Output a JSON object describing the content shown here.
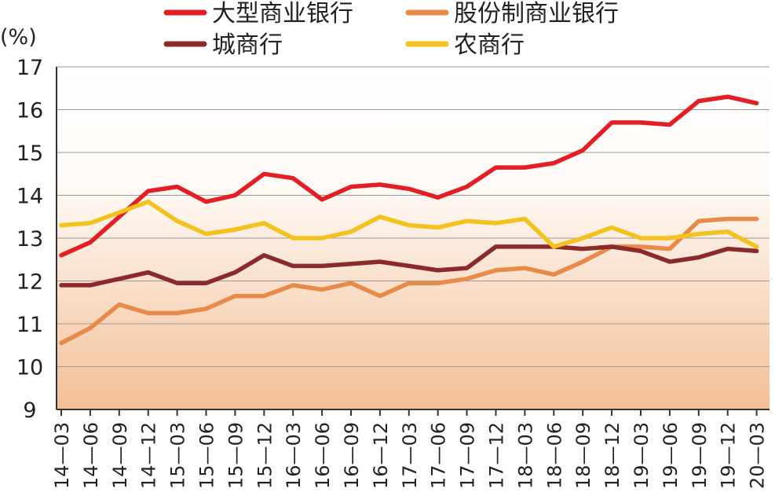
{
  "chart_data": {
    "type": "line",
    "ylabel": "(%)",
    "ylim": [
      9,
      17
    ],
    "yticks": [
      9,
      10,
      11,
      12,
      13,
      14,
      15,
      16,
      17
    ],
    "grid": "horizontal",
    "legend_position": "top",
    "categories": [
      "14—03",
      "14—06",
      "14—09",
      "14—12",
      "15—03",
      "15—06",
      "15—09",
      "15—12",
      "16—03",
      "16—06",
      "16—09",
      "16—12",
      "17—03",
      "17—06",
      "17—09",
      "17—12",
      "18—03",
      "18—06",
      "18—09",
      "18—12",
      "19—03",
      "19—06",
      "19—09",
      "19—12",
      "20—03"
    ],
    "series": [
      {
        "name": "大型商业银行",
        "color": "#e31e24",
        "values": [
          12.6,
          12.9,
          13.5,
          14.1,
          14.2,
          13.85,
          14.0,
          14.5,
          14.4,
          13.9,
          14.2,
          14.25,
          14.15,
          13.95,
          14.2,
          14.65,
          14.65,
          14.75,
          15.05,
          15.7,
          15.7,
          15.65,
          16.2,
          16.3,
          16.15
        ]
      },
      {
        "name": "股份制商业银行",
        "color": "#e88a4a",
        "values": [
          10.55,
          10.9,
          11.45,
          11.25,
          11.25,
          11.35,
          11.65,
          11.65,
          11.9,
          11.8,
          11.95,
          11.65,
          11.95,
          11.95,
          12.05,
          12.25,
          12.3,
          12.15,
          12.45,
          12.8,
          12.8,
          12.75,
          13.4,
          13.45,
          13.45
        ]
      },
      {
        "name": "城商行",
        "color": "#8b2a2a",
        "values": [
          11.9,
          11.9,
          12.05,
          12.2,
          11.95,
          11.95,
          12.2,
          12.6,
          12.35,
          12.35,
          12.4,
          12.45,
          12.35,
          12.25,
          12.3,
          12.8,
          12.8,
          12.8,
          12.75,
          12.8,
          12.7,
          12.45,
          12.55,
          12.75,
          12.7
        ]
      },
      {
        "name": "农商行",
        "color": "#f2c21f",
        "values": [
          13.3,
          13.35,
          13.6,
          13.85,
          13.4,
          13.1,
          13.2,
          13.35,
          13.0,
          13.0,
          13.15,
          13.5,
          13.3,
          13.25,
          13.4,
          13.35,
          13.45,
          12.8,
          13.0,
          13.25,
          13.0,
          13.0,
          13.1,
          13.15,
          12.8
        ]
      }
    ]
  }
}
